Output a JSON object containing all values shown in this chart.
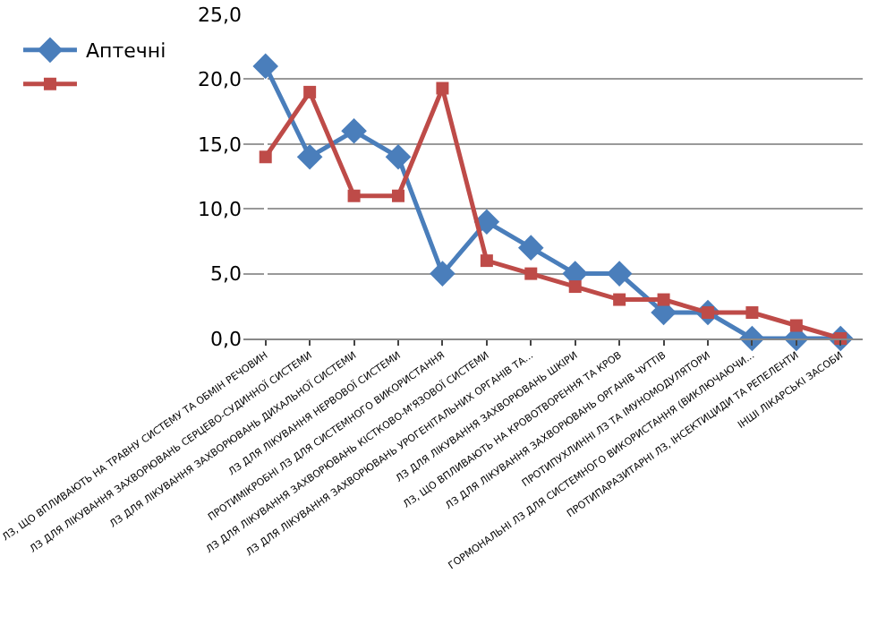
{
  "chart_data": {
    "type": "line",
    "categories": [
      "ЛЗ, ЩО ВПЛИВАЮТЬ НА ТРАВНУ СИСТЕМУ ТА ОБМІН РЕЧОВИН",
      "ЛЗ ДЛЯ ЛІКУВАННЯ ЗАХВОРЮВАНЬ СЕРЦЕВО-СУДИННОЇ СИСТЕМИ",
      "ЛЗ ДЛЯ ЛІКУВАННЯ ЗАХВОРЮВАНЬ ДИХАЛЬНОЇ СИСТЕМИ",
      "ЛЗ ДЛЯ ЛІКУВАННЯ НЕРВОВОЇ СИСТЕМИ",
      "ПРОТИМІКРОБНІ ЛЗ ДЛЯ СИСТЕМНОГО ВИКОРИСТАННЯ",
      "ЛЗ ДЛЯ ЛІКУВАННЯ ЗАХВОРЮВАНЬ КІСТКОВО-М'ЯЗОВОЇ СИСТЕМИ",
      "ЛЗ ДЛЯ ЛІКУВАННЯ ЗАХВОРЮВАНЬ УРОГЕНІТАЛЬНИХ ОРГАНІВ ТА...",
      "ЛЗ ДЛЯ ЛІКУВАННЯ ЗАХВОРЮВАНЬ ШКІРИ",
      "ЛЗ, ЩО ВПЛИВАЮТЬ НА КРОВОТВОРЕННЯ ТА КРОВ",
      "ЛЗ ДЛЯ ЛІКУВАННЯ ЗАХВОРЮВАНЬ ОРГАНІВ ЧУТТІВ",
      "ПРОТИПУХЛИННІ ЛЗ ТА ІМУНОМОДУЛЯТОРИ",
      "ГОРМОНАЛЬНІ ЛЗ ДЛЯ СИСТЕМНОГО ВИКОРИСТАННЯ (ВИКЛЮЧАЮЧИ...",
      "ПРОТИПАРАЗИТАРНІ ЛЗ, ІНСЕКТИЦИДИ ТА РЕПЕЛЕНТИ",
      "ІНШІ ЛІКАРСЬКІ ЗАСОБИ"
    ],
    "series": [
      {
        "name": "Аптечні",
        "color": "#4a7ebb",
        "marker": "diamond",
        "values": [
          21,
          14,
          16,
          14,
          5,
          9,
          7,
          5,
          5,
          2,
          2,
          0,
          0,
          0
        ]
      },
      {
        "color": "#be4b48",
        "marker": "square",
        "values": [
          14,
          19,
          11,
          11,
          19.3,
          6,
          5,
          4,
          3,
          3,
          2,
          2,
          1,
          0
        ]
      }
    ],
    "ylim": [
      0,
      25
    ],
    "yticks": [
      {
        "value": 0,
        "label": "0,0"
      },
      {
        "value": 5,
        "label": "5,0"
      },
      {
        "value": 10,
        "label": "10,0"
      },
      {
        "value": 15,
        "label": "15,0"
      },
      {
        "value": 20,
        "label": "20,0"
      },
      {
        "value": 25,
        "label": "25,0"
      }
    ],
    "grid": "y",
    "legend": "top left",
    "line_style": "solid"
  }
}
